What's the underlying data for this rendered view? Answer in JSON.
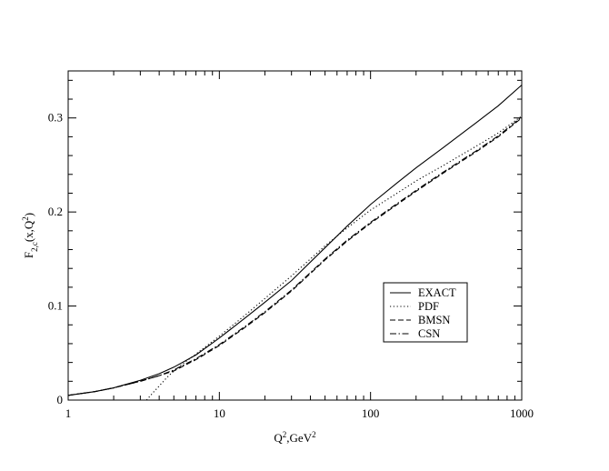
{
  "chart_data": {
    "type": "line",
    "xlabel": {
      "base": "Q",
      "sup1": "2",
      "mid": ",GeV",
      "sup2": "2"
    },
    "ylabel": {
      "base": "F",
      "sub": "2,c",
      "mid": "(x,Q",
      "sup": "2",
      "end": ")"
    },
    "xscale": "log",
    "xlim": [
      1,
      1000
    ],
    "ylim": [
      0,
      0.35
    ],
    "x_major_ticks": [
      1,
      10,
      100,
      1000
    ],
    "x_tick_labels": [
      "1",
      "10",
      "100",
      "1000"
    ],
    "y_major_ticks": [
      0,
      0.1,
      0.2,
      0.3
    ],
    "y_tick_labels": [
      "0",
      "0.1",
      "0.2",
      "0.3"
    ],
    "y_minor_step": 0.02,
    "grid": false,
    "legend_position": "lower-right",
    "series": [
      {
        "name": "EXACT",
        "dash": "solid",
        "x": [
          1,
          1.5,
          2,
          3,
          4,
          5,
          7,
          10,
          15,
          20,
          30,
          50,
          70,
          100,
          150,
          200,
          300,
          500,
          700,
          1000
        ],
        "y": [
          0.005,
          0.009,
          0.013,
          0.021,
          0.028,
          0.035,
          0.048,
          0.066,
          0.088,
          0.104,
          0.127,
          0.162,
          0.185,
          0.208,
          0.231,
          0.247,
          0.268,
          0.295,
          0.313,
          0.335
        ]
      },
      {
        "name": "PDF",
        "dash": "dotted",
        "x": [
          3.3,
          3.6,
          4,
          4.5,
          5,
          6,
          7,
          8,
          10,
          15,
          20,
          30,
          50,
          70,
          100,
          150,
          200,
          300,
          500,
          700,
          1000
        ],
        "y": [
          0.0,
          0.007,
          0.015,
          0.024,
          0.031,
          0.041,
          0.049,
          0.056,
          0.068,
          0.091,
          0.108,
          0.132,
          0.164,
          0.183,
          0.202,
          0.22,
          0.233,
          0.249,
          0.27,
          0.284,
          0.302
        ]
      },
      {
        "name": "BMSN",
        "dash": "dashed",
        "x": [
          1,
          1.5,
          2,
          3,
          4,
          5,
          7,
          10,
          15,
          20,
          30,
          50,
          70,
          100,
          150,
          200,
          300,
          500,
          700,
          1000
        ],
        "y": [
          0.005,
          0.009,
          0.013,
          0.02,
          0.026,
          0.031,
          0.043,
          0.058,
          0.078,
          0.093,
          0.116,
          0.149,
          0.169,
          0.188,
          0.208,
          0.222,
          0.241,
          0.264,
          0.28,
          0.3
        ]
      },
      {
        "name": "CSN",
        "dash": "dashdot",
        "x": [
          1,
          1.5,
          2,
          3,
          4,
          5,
          7,
          10,
          15,
          20,
          30,
          50,
          70,
          100,
          150,
          200,
          300,
          500,
          700,
          1000
        ],
        "y": [
          0.005,
          0.009,
          0.013,
          0.02,
          0.026,
          0.032,
          0.044,
          0.059,
          0.079,
          0.094,
          0.117,
          0.15,
          0.17,
          0.189,
          0.209,
          0.223,
          0.242,
          0.265,
          0.281,
          0.301
        ]
      }
    ]
  }
}
